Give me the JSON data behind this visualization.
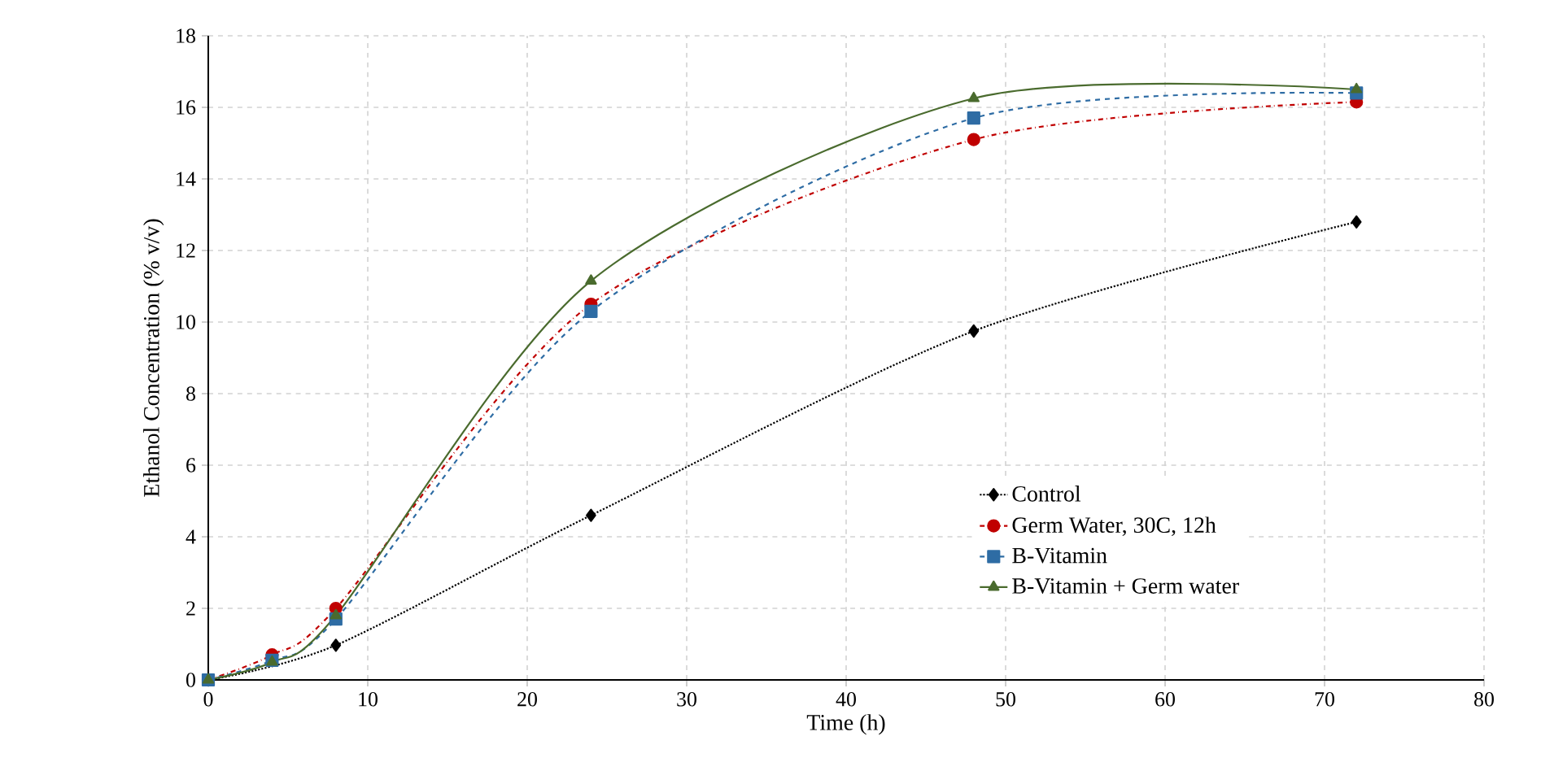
{
  "chart_data": {
    "type": "line",
    "xlabel": "Time (h)",
    "ylabel": "Ethanol Concentration (% v/v)",
    "x": [
      0,
      4,
      8,
      24,
      48,
      72
    ],
    "series": [
      {
        "name": "Control",
        "color": "#000000",
        "values": [
          0,
          null,
          0.97,
          4.6,
          9.75,
          12.8
        ],
        "marker": "diamond",
        "line_style": "dotted"
      },
      {
        "name": "Germ Water, 30C, 12h",
        "color": "#c00000",
        "values": [
          0,
          0.7,
          2.0,
          10.5,
          15.1,
          16.15
        ],
        "marker": "circle",
        "line_style": "dashdot"
      },
      {
        "name": "B-Vitamin",
        "color": "#2e6ca4",
        "values": [
          0,
          0.55,
          1.7,
          10.3,
          15.7,
          16.4
        ],
        "marker": "square",
        "line_style": "dashed"
      },
      {
        "name": "B-Vitamin + Germ water",
        "color": "#4a6b2e",
        "values": [
          0,
          0.5,
          1.8,
          11.15,
          16.25,
          16.5
        ],
        "marker": "triangle",
        "line_style": "solid"
      }
    ],
    "xlim": [
      0,
      80
    ],
    "xticks": [
      0,
      10,
      20,
      30,
      40,
      50,
      60,
      70,
      80
    ],
    "ylim": [
      0,
      18
    ],
    "yticks": [
      0,
      2,
      4,
      6,
      8,
      10,
      12,
      14,
      16,
      18
    ],
    "grid": true,
    "legend": "right"
  }
}
